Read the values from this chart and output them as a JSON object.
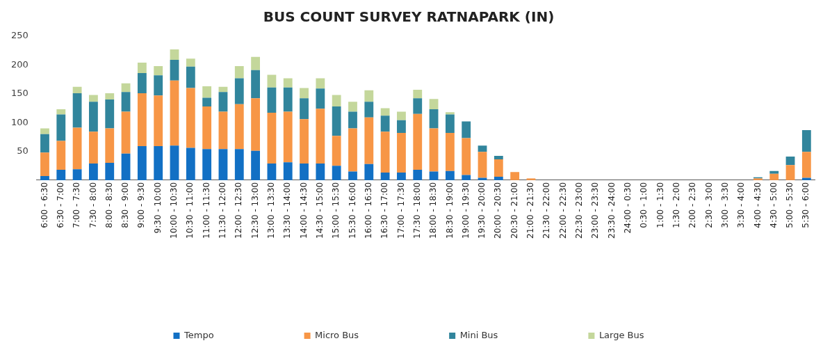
{
  "chart_data": {
    "type": "bar",
    "title": "BUS COUNT SURVEY RATNAPARK (IN)",
    "stacked": true,
    "legend": "bottom",
    "grid": false,
    "categories": [
      "6:00 - 6:30",
      "6:30 - 7:00",
      "7:00 - 7:30",
      "7:30 - 8:00",
      "8:00 - 8:30",
      "8:30 - 9:00",
      "9:00 - 9:30",
      "9:30 - 10:00",
      "10:00 - 10:30",
      "10:30 - 11:00",
      "11:00 - 11:30",
      "11:30 - 12:00",
      "12:00 - 12:30",
      "12:30 - 13:00",
      "13:00 - 13:30",
      "13:30 - 14:00",
      "14:00 - 14:30",
      "14:30 - 15:00",
      "15:00 - 15:30",
      "15:30 - 16:00",
      "16:00 - 16:30",
      "16:30 - 17:00",
      "17:00 - 17:30",
      "17:30 - 18:00",
      "18:00 - 18:30",
      "18:30 - 19:00",
      "19:00 - 19:30",
      "19:30 - 20:00",
      "20:00 - 20:30",
      "20:30 - 21:00",
      "21:00 - 21:30",
      "21:30 - 22:00",
      "22:00 - 22:30",
      "22:30 - 23:00",
      "23:00 - 23:30",
      "23:30 - 24:00",
      "24:00 - 0:30",
      "0:30 - 1:00",
      "1:00 - 1:30",
      "1:30 - 2:00",
      "2:00 - 2:30",
      "2:30 - 3:00",
      "3:00 - 3:30",
      "3:30 - 4:00",
      "4:00 - 4:30",
      "4:30 - 5:00",
      "5:00 - 5:30",
      "5:30 - 6:00"
    ],
    "ylim": [
      0,
      250
    ],
    "yticks": [
      50,
      100,
      150,
      200,
      250
    ],
    "series": [
      {
        "name": "Tempo",
        "color": "#1270c4",
        "values": [
          7,
          18,
          19,
          29,
          30,
          46,
          59,
          59,
          60,
          56,
          54,
          54,
          54,
          51,
          29,
          31,
          29,
          29,
          25,
          15,
          28,
          13,
          13,
          18,
          15,
          16,
          9,
          4,
          6,
          0,
          0,
          0,
          0,
          0,
          0,
          0,
          0,
          0,
          0,
          0,
          0,
          0,
          0,
          0,
          0,
          0,
          0,
          4
        ]
      },
      {
        "name": "Micro Bus",
        "color": "#f79646",
        "values": [
          41,
          50,
          72,
          55,
          60,
          73,
          92,
          88,
          113,
          104,
          74,
          65,
          78,
          91,
          88,
          88,
          77,
          95,
          52,
          75,
          81,
          71,
          69,
          97,
          75,
          66,
          64,
          45,
          30,
          14,
          3,
          0,
          0,
          0,
          0,
          0,
          0,
          0,
          0,
          0,
          0,
          0,
          0,
          0,
          3,
          11,
          26,
          45
        ]
      },
      {
        "name": "Mini Bus",
        "color": "#31859c",
        "values": [
          32,
          46,
          60,
          52,
          50,
          34,
          35,
          35,
          36,
          37,
          15,
          34,
          45,
          49,
          44,
          42,
          36,
          35,
          51,
          29,
          27,
          28,
          22,
          27,
          33,
          32,
          29,
          11,
          6,
          0,
          0,
          0,
          0,
          0,
          0,
          0,
          0,
          0,
          0,
          0,
          0,
          0,
          0,
          0,
          2,
          5,
          15,
          38
        ]
      },
      {
        "name": "Large Bus",
        "color": "#c4d79b",
        "values": [
          10,
          9,
          11,
          12,
          11,
          15,
          18,
          16,
          18,
          14,
          20,
          9,
          21,
          23,
          22,
          16,
          18,
          18,
          20,
          17,
          20,
          13,
          15,
          15,
          18,
          4,
          0,
          0,
          0,
          0,
          0,
          0,
          0,
          0,
          0,
          0,
          0,
          0,
          0,
          0,
          0,
          0,
          0,
          0,
          0,
          0,
          0,
          0
        ]
      }
    ]
  }
}
